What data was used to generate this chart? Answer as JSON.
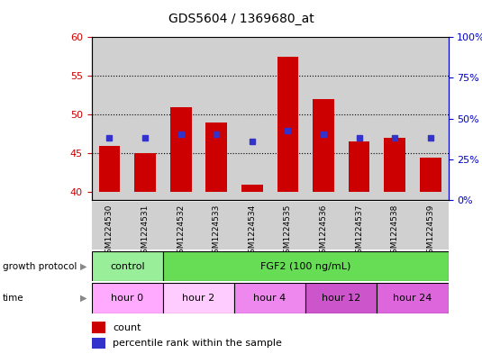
{
  "title": "GDS5604 / 1369680_at",
  "samples": [
    "GSM1224530",
    "GSM1224531",
    "GSM1224532",
    "GSM1224533",
    "GSM1224534",
    "GSM1224535",
    "GSM1224536",
    "GSM1224537",
    "GSM1224538",
    "GSM1224539"
  ],
  "bar_values": [
    46.0,
    45.0,
    51.0,
    49.0,
    41.0,
    57.5,
    52.0,
    46.5,
    47.0,
    44.5
  ],
  "bar_base": 40,
  "blue_dot_values": [
    47.0,
    47.0,
    47.5,
    47.5,
    46.5,
    48.0,
    47.5,
    47.0,
    47.0,
    47.0
  ],
  "ylim_left": [
    39,
    60
  ],
  "ylim_right": [
    0,
    100
  ],
  "yticks_left": [
    40,
    45,
    50,
    55,
    60
  ],
  "yticks_right": [
    0,
    25,
    50,
    75,
    100
  ],
  "ytick_labels_right": [
    "0%",
    "25%",
    "50%",
    "75%",
    "100%"
  ],
  "bar_color": "#cc0000",
  "dot_color": "#3333cc",
  "grid_yticks": [
    45,
    50,
    55
  ],
  "col_bg_color": "#d0d0d0",
  "growth_protocol_groups": [
    {
      "label": "control",
      "start": 0,
      "end": 2,
      "color": "#99ee99"
    },
    {
      "label": "FGF2 (100 ng/mL)",
      "start": 2,
      "end": 10,
      "color": "#66dd55"
    }
  ],
  "time_groups": [
    {
      "label": "hour 0",
      "start": 0,
      "end": 2,
      "color": "#ffaaff"
    },
    {
      "label": "hour 2",
      "start": 2,
      "end": 4,
      "color": "#ffccff"
    },
    {
      "label": "hour 4",
      "start": 4,
      "end": 6,
      "color": "#ee88ee"
    },
    {
      "label": "hour 12",
      "start": 6,
      "end": 8,
      "color": "#cc55cc"
    },
    {
      "label": "hour 24",
      "start": 8,
      "end": 10,
      "color": "#dd66dd"
    }
  ],
  "legend_items": [
    {
      "label": "count",
      "color": "#cc0000"
    },
    {
      "label": "percentile rank within the sample",
      "color": "#3333cc"
    }
  ],
  "left_axis_color": "#cc0000",
  "right_axis_color": "#0000cc",
  "background_color": "#ffffff"
}
